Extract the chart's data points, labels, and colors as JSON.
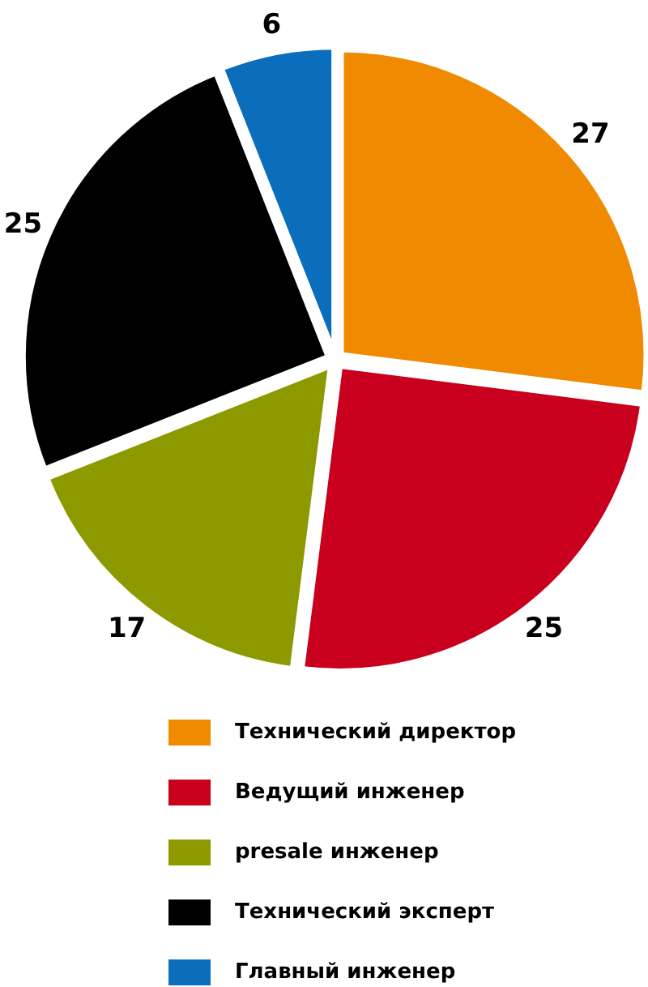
{
  "chart_data": {
    "type": "pie",
    "categories": [
      "Технический директор",
      "Ведущий инженер",
      "presale инженер",
      "Технический эксперт",
      "Главный инженер"
    ],
    "values": [
      27,
      25,
      17,
      25,
      6
    ],
    "colors": [
      "#f08a00",
      "#c8001e",
      "#8c9a00",
      "#000000",
      "#0a6ebd"
    ],
    "data_labels": true,
    "legend": "bottom"
  }
}
